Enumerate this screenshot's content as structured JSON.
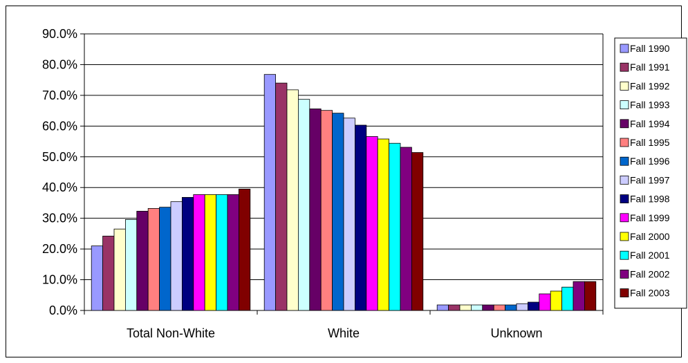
{
  "chart_data": {
    "type": "bar",
    "title": "",
    "xlabel": "",
    "ylabel": "",
    "ylim": [
      0,
      90
    ],
    "yticks": [
      "0.0%",
      "10.0%",
      "20.0%",
      "30.0%",
      "40.0%",
      "50.0%",
      "60.0%",
      "70.0%",
      "80.0%",
      "90.0%"
    ],
    "y_tick_step": 10,
    "grid": true,
    "legend_position": "right",
    "categories": [
      "Total Non-White",
      "White",
      "Unknown"
    ],
    "series": [
      {
        "name": "Fall 1990",
        "color": "#9999FF",
        "values": [
          21.0,
          76.8,
          1.8
        ]
      },
      {
        "name": "Fall 1991",
        "color": "#993366",
        "values": [
          24.2,
          74.0,
          1.8
        ]
      },
      {
        "name": "Fall 1992",
        "color": "#FFFFCC",
        "values": [
          26.5,
          71.8,
          1.8
        ]
      },
      {
        "name": "Fall 1993",
        "color": "#CCFFFF",
        "values": [
          29.6,
          68.7,
          1.8
        ]
      },
      {
        "name": "Fall 1994",
        "color": "#660066",
        "values": [
          32.3,
          65.6,
          1.8
        ]
      },
      {
        "name": "Fall 1995",
        "color": "#FF8080",
        "values": [
          33.2,
          65.1,
          1.8
        ]
      },
      {
        "name": "Fall 1996",
        "color": "#0066CC",
        "values": [
          33.6,
          64.2,
          1.8
        ]
      },
      {
        "name": "Fall 1997",
        "color": "#CCCCFF",
        "values": [
          35.4,
          62.6,
          2.2
        ]
      },
      {
        "name": "Fall 1998",
        "color": "#000080",
        "values": [
          36.8,
          60.3,
          2.7
        ]
      },
      {
        "name": "Fall 1999",
        "color": "#FF00FF",
        "values": [
          37.7,
          56.6,
          5.4
        ]
      },
      {
        "name": "Fall 2000",
        "color": "#FFFF00",
        "values": [
          37.7,
          55.8,
          6.3
        ]
      },
      {
        "name": "Fall 2001",
        "color": "#00FFFF",
        "values": [
          37.7,
          54.4,
          7.6
        ]
      },
      {
        "name": "Fall 2002",
        "color": "#800080",
        "values": [
          37.7,
          53.1,
          9.4
        ]
      },
      {
        "name": "Fall 2003",
        "color": "#800000",
        "values": [
          39.5,
          51.4,
          9.4
        ]
      }
    ]
  }
}
